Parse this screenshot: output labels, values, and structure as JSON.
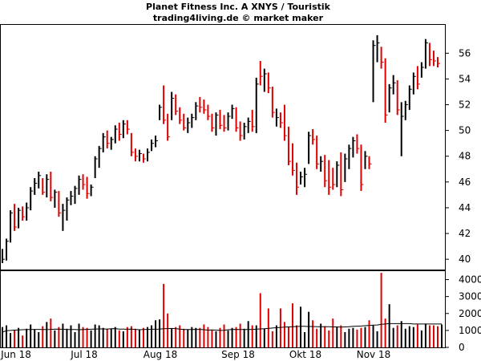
{
  "title_line1": "Planet Fitness Inc. A XNYS / Touristik",
  "title_line2": "trading4living.de © market maker",
  "colors": {
    "up": "#000000",
    "down": "#e00000",
    "avg_line": "#000000",
    "frame": "#000000",
    "background": "#ffffff"
  },
  "chart_data": [
    {
      "type": "ohlc",
      "title": "Planet Fitness Inc. A XNYS / Touristik",
      "y_axis": {
        "side": "right",
        "ylim": [
          39.2,
          58.2
        ],
        "ticks": [
          40,
          42,
          44,
          46,
          48,
          50,
          52,
          54,
          56
        ]
      },
      "x_axis": {
        "labels": [
          "Jun 18",
          "Jul 18",
          "Aug 18",
          "Sep 18",
          "Okt 18",
          "Nov 18"
        ]
      },
      "grid": false,
      "candles": [
        {
          "h": 40.8,
          "l": 39.7,
          "c": 40.0,
          "d": "up"
        },
        {
          "h": 41.6,
          "l": 39.9,
          "c": 41.4,
          "d": "up"
        },
        {
          "h": 43.8,
          "l": 41.3,
          "c": 43.6,
          "d": "up"
        },
        {
          "h": 44.3,
          "l": 42.2,
          "c": 42.5,
          "d": "down"
        },
        {
          "h": 44.0,
          "l": 42.4,
          "c": 43.8,
          "d": "up"
        },
        {
          "h": 44.1,
          "l": 43.0,
          "c": 43.3,
          "d": "down"
        },
        {
          "h": 44.4,
          "l": 43.0,
          "c": 44.0,
          "d": "up"
        },
        {
          "h": 45.6,
          "l": 43.8,
          "c": 45.3,
          "d": "up"
        },
        {
          "h": 46.3,
          "l": 45.0,
          "c": 45.9,
          "d": "up"
        },
        {
          "h": 46.8,
          "l": 45.5,
          "c": 46.5,
          "d": "up"
        },
        {
          "h": 46.3,
          "l": 45.0,
          "c": 45.2,
          "d": "down"
        },
        {
          "h": 46.6,
          "l": 44.8,
          "c": 46.2,
          "d": "up"
        },
        {
          "h": 46.8,
          "l": 44.5,
          "c": 44.8,
          "d": "down"
        },
        {
          "h": 45.4,
          "l": 44.0,
          "c": 45.2,
          "d": "up"
        },
        {
          "h": 45.3,
          "l": 43.3,
          "c": 43.6,
          "d": "down"
        },
        {
          "h": 44.3,
          "l": 42.2,
          "c": 43.8,
          "d": "up"
        },
        {
          "h": 44.8,
          "l": 43.0,
          "c": 44.6,
          "d": "up"
        },
        {
          "h": 45.3,
          "l": 44.2,
          "c": 44.9,
          "d": "up"
        },
        {
          "h": 45.7,
          "l": 44.3,
          "c": 45.5,
          "d": "up"
        },
        {
          "h": 46.5,
          "l": 45.0,
          "c": 46.2,
          "d": "up"
        },
        {
          "h": 46.6,
          "l": 45.4,
          "c": 45.8,
          "d": "down"
        },
        {
          "h": 46.4,
          "l": 44.7,
          "c": 45.1,
          "d": "down"
        },
        {
          "h": 45.8,
          "l": 44.9,
          "c": 45.6,
          "d": "up"
        },
        {
          "h": 48.0,
          "l": 46.3,
          "c": 47.8,
          "d": "up"
        },
        {
          "h": 48.8,
          "l": 47.1,
          "c": 48.6,
          "d": "up"
        },
        {
          "h": 49.8,
          "l": 48.3,
          "c": 49.5,
          "d": "up"
        },
        {
          "h": 50.0,
          "l": 48.6,
          "c": 49.0,
          "d": "down"
        },
        {
          "h": 49.5,
          "l": 48.5,
          "c": 49.3,
          "d": "up"
        },
        {
          "h": 50.4,
          "l": 49.0,
          "c": 50.1,
          "d": "up"
        },
        {
          "h": 50.6,
          "l": 49.2,
          "c": 49.7,
          "d": "down"
        },
        {
          "h": 50.8,
          "l": 49.4,
          "c": 50.5,
          "d": "up"
        },
        {
          "h": 50.8,
          "l": 49.7,
          "c": 50.1,
          "d": "down"
        },
        {
          "h": 49.8,
          "l": 48.0,
          "c": 48.3,
          "d": "down"
        },
        {
          "h": 48.6,
          "l": 47.6,
          "c": 48.0,
          "d": "down"
        },
        {
          "h": 48.5,
          "l": 47.6,
          "c": 48.2,
          "d": "up"
        },
        {
          "h": 48.2,
          "l": 47.5,
          "c": 47.8,
          "d": "down"
        },
        {
          "h": 48.6,
          "l": 47.6,
          "c": 48.3,
          "d": "up"
        },
        {
          "h": 49.3,
          "l": 48.4,
          "c": 49.0,
          "d": "up"
        },
        {
          "h": 49.6,
          "l": 48.7,
          "c": 49.2,
          "d": "up"
        },
        {
          "h": 52.0,
          "l": 50.8,
          "c": 51.8,
          "d": "up"
        },
        {
          "h": 53.5,
          "l": 50.5,
          "c": 50.8,
          "d": "down"
        },
        {
          "h": 51.3,
          "l": 49.2,
          "c": 49.5,
          "d": "down"
        },
        {
          "h": 53.0,
          "l": 50.8,
          "c": 52.5,
          "d": "up"
        },
        {
          "h": 52.8,
          "l": 51.2,
          "c": 51.5,
          "d": "down"
        },
        {
          "h": 51.8,
          "l": 50.5,
          "c": 50.8,
          "d": "down"
        },
        {
          "h": 51.3,
          "l": 50.0,
          "c": 50.2,
          "d": "down"
        },
        {
          "h": 51.0,
          "l": 49.8,
          "c": 50.6,
          "d": "up"
        },
        {
          "h": 51.3,
          "l": 50.2,
          "c": 51.0,
          "d": "up"
        },
        {
          "h": 52.2,
          "l": 50.8,
          "c": 51.9,
          "d": "up"
        },
        {
          "h": 52.6,
          "l": 51.4,
          "c": 51.8,
          "d": "down"
        },
        {
          "h": 52.4,
          "l": 51.3,
          "c": 51.6,
          "d": "down"
        },
        {
          "h": 52.0,
          "l": 50.8,
          "c": 51.1,
          "d": "down"
        },
        {
          "h": 51.3,
          "l": 49.9,
          "c": 50.2,
          "d": "down"
        },
        {
          "h": 51.4,
          "l": 49.6,
          "c": 51.2,
          "d": "up"
        },
        {
          "h": 51.6,
          "l": 50.1,
          "c": 50.4,
          "d": "down"
        },
        {
          "h": 51.2,
          "l": 49.9,
          "c": 50.2,
          "d": "down"
        },
        {
          "h": 51.4,
          "l": 50.0,
          "c": 51.1,
          "d": "up"
        },
        {
          "h": 52.0,
          "l": 50.9,
          "c": 51.7,
          "d": "up"
        },
        {
          "h": 51.8,
          "l": 49.9,
          "c": 50.2,
          "d": "down"
        },
        {
          "h": 50.7,
          "l": 49.2,
          "c": 49.6,
          "d": "down"
        },
        {
          "h": 50.6,
          "l": 49.3,
          "c": 50.3,
          "d": "up"
        },
        {
          "h": 51.0,
          "l": 49.8,
          "c": 50.7,
          "d": "up"
        },
        {
          "h": 51.6,
          "l": 49.9,
          "c": 50.3,
          "d": "down"
        },
        {
          "h": 54.1,
          "l": 49.8,
          "c": 53.6,
          "d": "up"
        },
        {
          "h": 55.4,
          "l": 53.5,
          "c": 54.2,
          "d": "down"
        },
        {
          "h": 54.8,
          "l": 53.0,
          "c": 54.4,
          "d": "up"
        },
        {
          "h": 54.5,
          "l": 52.9,
          "c": 53.3,
          "d": "down"
        },
        {
          "h": 53.4,
          "l": 51.0,
          "c": 51.4,
          "d": "down"
        },
        {
          "h": 51.7,
          "l": 50.3,
          "c": 51.0,
          "d": "up"
        },
        {
          "h": 51.4,
          "l": 50.2,
          "c": 50.6,
          "d": "down"
        },
        {
          "h": 52.0,
          "l": 49.2,
          "c": 49.6,
          "d": "down"
        },
        {
          "h": 50.3,
          "l": 47.3,
          "c": 47.6,
          "d": "down"
        },
        {
          "h": 49.0,
          "l": 46.5,
          "c": 46.9,
          "d": "down"
        },
        {
          "h": 47.5,
          "l": 45.0,
          "c": 45.6,
          "d": "down"
        },
        {
          "h": 46.8,
          "l": 45.8,
          "c": 46.4,
          "d": "up"
        },
        {
          "h": 47.1,
          "l": 45.6,
          "c": 46.6,
          "d": "up"
        },
        {
          "h": 49.9,
          "l": 47.4,
          "c": 49.6,
          "d": "up"
        },
        {
          "h": 50.1,
          "l": 48.9,
          "c": 49.3,
          "d": "down"
        },
        {
          "h": 49.6,
          "l": 47.0,
          "c": 47.4,
          "d": "down"
        },
        {
          "h": 48.0,
          "l": 46.8,
          "c": 47.6,
          "d": "up"
        },
        {
          "h": 48.1,
          "l": 45.6,
          "c": 46.1,
          "d": "down"
        },
        {
          "h": 47.7,
          "l": 45.0,
          "c": 45.6,
          "d": "down"
        },
        {
          "h": 47.1,
          "l": 45.4,
          "c": 45.8,
          "d": "down"
        },
        {
          "h": 47.6,
          "l": 45.6,
          "c": 47.3,
          "d": "up"
        },
        {
          "h": 48.3,
          "l": 44.9,
          "c": 45.4,
          "d": "down"
        },
        {
          "h": 48.2,
          "l": 46.0,
          "c": 47.8,
          "d": "up"
        },
        {
          "h": 48.9,
          "l": 47.0,
          "c": 48.6,
          "d": "up"
        },
        {
          "h": 49.5,
          "l": 47.9,
          "c": 49.2,
          "d": "up"
        },
        {
          "h": 49.7,
          "l": 48.2,
          "c": 48.6,
          "d": "down"
        },
        {
          "h": 48.9,
          "l": 45.3,
          "c": 45.8,
          "d": "down"
        },
        {
          "h": 48.4,
          "l": 47.0,
          "c": 48.0,
          "d": "up"
        },
        {
          "h": 48.0,
          "l": 47.0,
          "c": 47.4,
          "d": "down"
        },
        {
          "h": 57.0,
          "l": 52.2,
          "c": 56.6,
          "d": "up"
        },
        {
          "h": 57.4,
          "l": 55.3,
          "c": 56.8,
          "d": "up"
        },
        {
          "h": 56.5,
          "l": 54.8,
          "c": 55.3,
          "d": "down"
        },
        {
          "h": 55.6,
          "l": 50.6,
          "c": 51.2,
          "d": "down"
        },
        {
          "h": 53.6,
          "l": 51.4,
          "c": 53.3,
          "d": "up"
        },
        {
          "h": 54.3,
          "l": 52.8,
          "c": 53.7,
          "d": "up"
        },
        {
          "h": 53.9,
          "l": 51.2,
          "c": 51.6,
          "d": "down"
        },
        {
          "h": 52.2,
          "l": 48.0,
          "c": 51.1,
          "d": "up"
        },
        {
          "h": 52.3,
          "l": 50.8,
          "c": 52.0,
          "d": "up"
        },
        {
          "h": 53.5,
          "l": 51.6,
          "c": 53.2,
          "d": "up"
        },
        {
          "h": 54.5,
          "l": 52.8,
          "c": 54.2,
          "d": "up"
        },
        {
          "h": 55.0,
          "l": 53.2,
          "c": 53.6,
          "d": "down"
        },
        {
          "h": 55.3,
          "l": 54.1,
          "c": 54.9,
          "d": "up"
        },
        {
          "h": 57.1,
          "l": 54.8,
          "c": 56.8,
          "d": "up"
        },
        {
          "h": 56.8,
          "l": 55.0,
          "c": 55.5,
          "d": "down"
        },
        {
          "h": 56.2,
          "l": 55.0,
          "c": 55.4,
          "d": "down"
        },
        {
          "h": 55.7,
          "l": 54.9,
          "c": 55.2,
          "d": "down"
        }
      ]
    },
    {
      "type": "bar",
      "title": "",
      "y_axis": {
        "side": "right",
        "ylim": [
          0,
          4500
        ],
        "ticks": [
          0,
          1000,
          2000,
          3000,
          4000
        ]
      },
      "grid": false,
      "volumes": [
        1200,
        1300,
        850,
        1000,
        1150,
        700,
        1100,
        1350,
        1050,
        900,
        1250,
        1500,
        1700,
        1000,
        1200,
        1400,
        1100,
        1300,
        900,
        1400,
        1200,
        1150,
        1000,
        1350,
        1300,
        1150,
        1100,
        1100,
        1200,
        1000,
        950,
        1200,
        1250,
        1100,
        1050,
        1150,
        1200,
        1300,
        1600,
        1650,
        3750,
        2000,
        1100,
        1200,
        1300,
        1100,
        1050,
        1200,
        1150,
        1150,
        1350,
        1200,
        1000,
        950,
        1150,
        1350,
        1000,
        1150,
        1200,
        1400,
        1100,
        1550,
        1300,
        1300,
        3200,
        1100,
        2300,
        950,
        1300,
        2300,
        1500,
        1200,
        2600,
        1300,
        2400,
        900,
        2100,
        1600,
        1100,
        1400,
        1250,
        1000,
        1700,
        1200,
        1300,
        900,
        1100,
        1150,
        1050,
        1150,
        1200,
        1600,
        1300,
        950,
        4400,
        1700,
        2550,
        1150,
        1300,
        1550,
        1100,
        1250,
        1200,
        1350,
        1000,
        1400,
        1300,
        1300,
        1250,
        1350
      ],
      "avg_line": [
        900,
        980,
        1000,
        1020,
        1030,
        1040,
        1050,
        1050,
        1060,
        1060,
        1050,
        1050,
        1060,
        1080,
        1070,
        1070,
        1050,
        1050,
        1050,
        1040,
        1050,
        1060,
        1070,
        1080,
        1090,
        1090,
        1080,
        1100,
        1110,
        1080,
        1080,
        1070,
        1080,
        1060,
        1040,
        1050,
        1060,
        1070,
        1070,
        1080,
        1100,
        1110,
        1120,
        1110,
        1080,
        1050,
        1050,
        1050,
        1060,
        1060,
        1040,
        1020,
        1030,
        1020,
        1000,
        1010,
        1040,
        1050,
        1060,
        1050,
        1050,
        1050,
        1060,
        1070,
        1090,
        1100,
        1120,
        1140,
        1160,
        1180,
        1200,
        1210,
        1220,
        1230,
        1240,
        1240,
        1230,
        1230,
        1220,
        1220,
        1220,
        1220,
        1210,
        1210,
        1200,
        1210,
        1220,
        1240,
        1250,
        1260,
        1280,
        1300,
        1310,
        1320,
        1360,
        1380,
        1400,
        1400,
        1400,
        1400,
        1400,
        1400,
        1380,
        1380,
        1380,
        1380,
        1380,
        1380,
        1380,
        1380
      ]
    }
  ]
}
